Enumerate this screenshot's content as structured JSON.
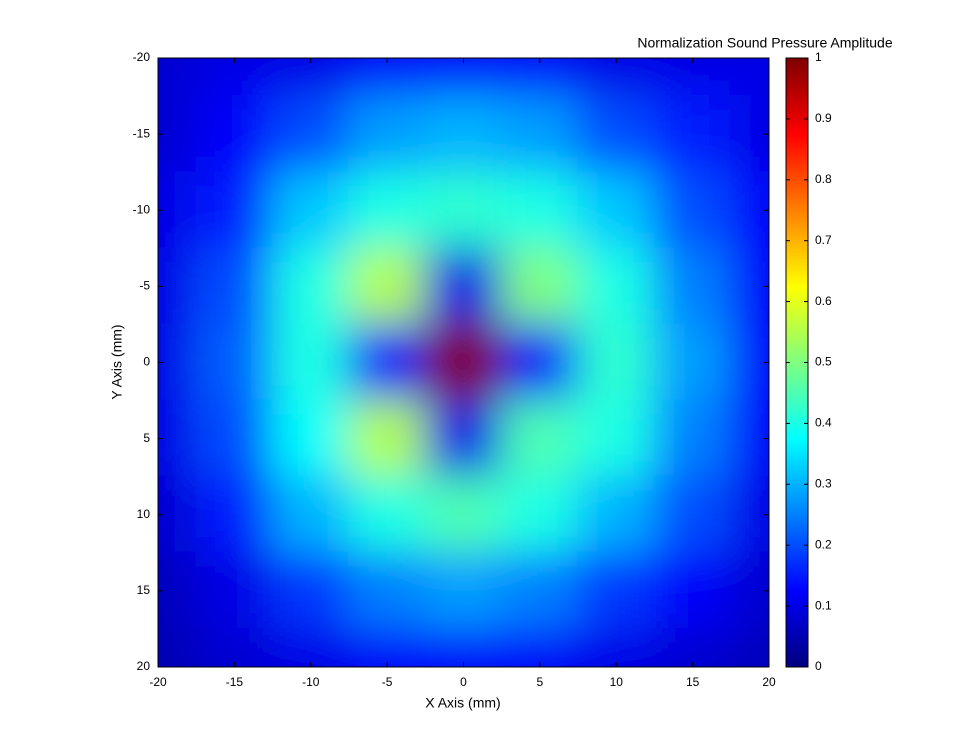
{
  "chart_data": {
    "type": "heatmap",
    "title": "Normalization Sound Pressure Amplitude",
    "xlabel": "X Axis (mm)",
    "ylabel": "Y Axis (mm)",
    "x": [
      -20,
      -15,
      -10,
      -5,
      0,
      5,
      10,
      15,
      20
    ],
    "y": [
      -20,
      -15,
      -10,
      -5,
      0,
      5,
      10,
      15,
      20
    ],
    "values": [
      [
        0.08,
        0.1,
        0.1,
        0.12,
        0.12,
        0.12,
        0.1,
        0.1,
        0.1
      ],
      [
        0.08,
        0.12,
        0.2,
        0.28,
        0.3,
        0.28,
        0.2,
        0.15,
        0.1
      ],
      [
        0.1,
        0.15,
        0.32,
        0.4,
        0.42,
        0.4,
        0.32,
        0.2,
        0.12
      ],
      [
        0.1,
        0.2,
        0.4,
        0.55,
        0.1,
        0.5,
        0.4,
        0.25,
        0.12
      ],
      [
        0.1,
        0.22,
        0.4,
        0.12,
        1,
        0.12,
        0.42,
        0.28,
        0.12
      ],
      [
        0.1,
        0.2,
        0.38,
        0.55,
        0.1,
        0.45,
        0.4,
        0.25,
        0.12
      ],
      [
        0.08,
        0.15,
        0.3,
        0.4,
        0.45,
        0.4,
        0.3,
        0.2,
        0.1
      ],
      [
        0.06,
        0.1,
        0.18,
        0.25,
        0.28,
        0.25,
        0.18,
        0.12,
        0.08
      ],
      [
        0.05,
        0.08,
        0.1,
        0.12,
        0.12,
        0.12,
        0.1,
        0.08,
        0.06
      ]
    ],
    "xlim": [
      -20,
      20
    ],
    "ylim": [
      -20,
      20
    ],
    "xticks": [
      -20,
      -15,
      -10,
      -5,
      0,
      5,
      10,
      15,
      20
    ],
    "yticks": [
      -20,
      -15,
      -10,
      -5,
      0,
      5,
      10,
      15,
      20
    ],
    "y_reversed": true,
    "colormap": "jet",
    "clim": [
      0,
      1
    ],
    "cticks": [
      0,
      0.1,
      0.2,
      0.3,
      0.4,
      0.5,
      0.6,
      0.7,
      0.8,
      0.9,
      1
    ]
  }
}
